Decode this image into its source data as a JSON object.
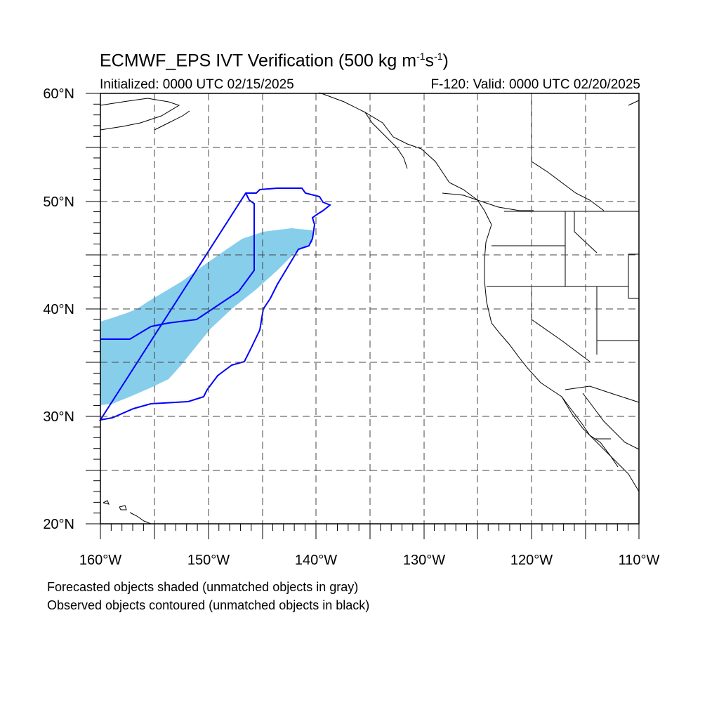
{
  "title": {
    "main": "ECMWF_EPS IVT Verification (500 kg m",
    "exp1": "-1",
    "mid": "s",
    "exp2": "-1",
    "close": ")"
  },
  "initialized": "Initialized: 0000 UTC 02/15/2025",
  "valid": "F-120: Valid: 0000 UTC 02/20/2025",
  "lat_labels": [
    "60°N",
    "50°N",
    "40°N",
    "30°N",
    "20°N"
  ],
  "lon_labels": [
    "160°W",
    "150°W",
    "140°W",
    "130°W",
    "120°W",
    "110°W"
  ],
  "legend": {
    "line1": "Forecasted objects shaded (unmatched objects in gray)",
    "line2": "Observed objects contoured (unmatched objects in black)"
  },
  "map": {
    "projection": "cylindrical equidistant",
    "lon_range": [
      -160,
      -110
    ],
    "lat_range": [
      20,
      60
    ],
    "grid_spacing_deg": 5,
    "forecast_fill_color": "#87CEEB",
    "observed_contour_color": "#0000FF",
    "coastline_color": "#000000"
  }
}
